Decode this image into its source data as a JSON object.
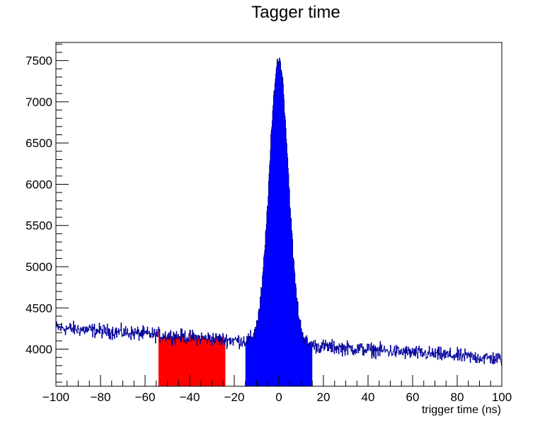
{
  "chart_data": {
    "type": "histogram",
    "title": "Tagger time",
    "xlabel": "trigger time (ns)",
    "ylabel": "",
    "xlim": [
      -100,
      100
    ],
    "ylim": [
      3550,
      7720
    ],
    "x_ticks": [
      -100,
      -80,
      -60,
      -40,
      -20,
      0,
      20,
      40,
      60,
      80,
      100
    ],
    "x_tick_labels": [
      "−100",
      "−80",
      "−60",
      "−40",
      "−20",
      "0",
      "20",
      "40",
      "60",
      "80",
      "100"
    ],
    "y_ticks": [
      4000,
      4500,
      5000,
      5500,
      6000,
      6500,
      7000,
      7500
    ],
    "y_tick_labels": [
      "4000",
      "4500",
      "5000",
      "5500",
      "6000",
      "6500",
      "7000",
      "7500"
    ],
    "grid": false,
    "legend": "none",
    "series": [
      {
        "style": "line",
        "color": "#000099",
        "description_shape": "flat background sloping from ~4260 at x=-100 to ~3880 at x=100 with a Gaussian peak centered at 0",
        "background_start": 4260,
        "background_end": 3880,
        "peak_center": 0,
        "peak_height": 7510,
        "peak_sigma": 4.2,
        "noise_amplitude": 70
      },
      {
        "style": "filled-region",
        "color": "#ff0000",
        "x_range": [
          -54,
          -24
        ]
      },
      {
        "style": "filled-region",
        "color": "#0000ff",
        "x_range": [
          -15,
          15
        ]
      }
    ]
  }
}
